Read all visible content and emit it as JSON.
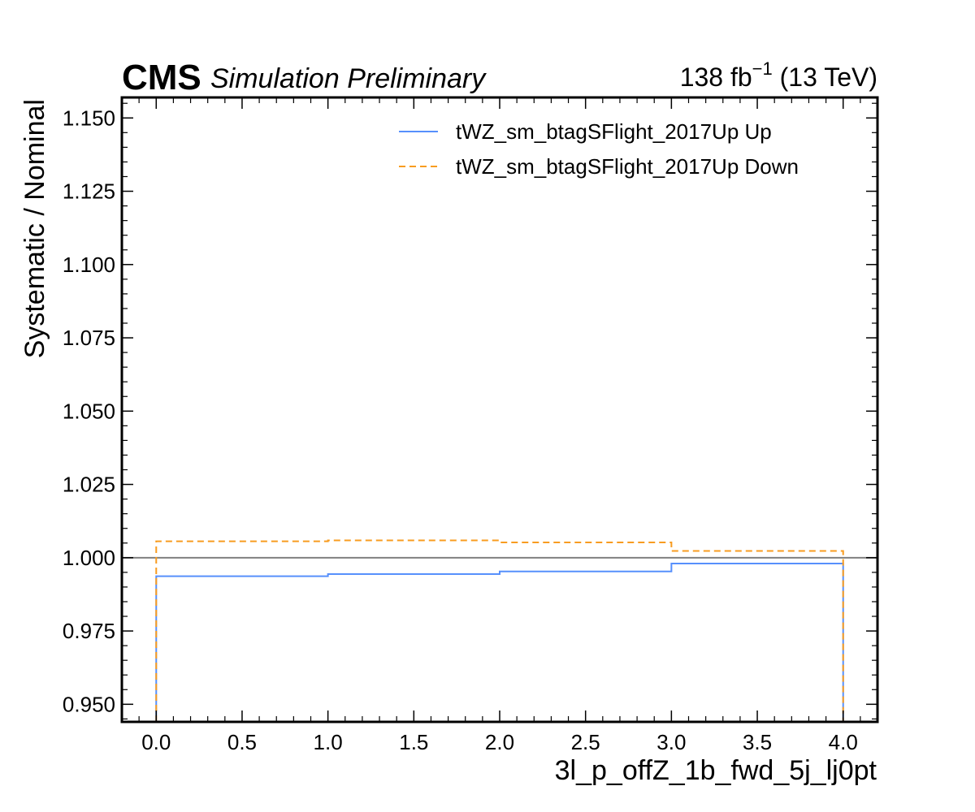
{
  "chart_data": {
    "type": "line",
    "drawstyle": "steps",
    "experiment_label": "CMS",
    "status_label": "Simulation Preliminary",
    "lumi_label": {
      "prefix": "138 fb",
      "exponent": "−1",
      "suffix": " (13 TeV)"
    },
    "xlabel": "3l_p_offZ_1b_fwd_5j_lj0pt",
    "ylabel": "Systematic / Nominal",
    "xlim": [
      -0.2,
      4.2
    ],
    "ylim": [
      0.944,
      1.157
    ],
    "x_ticks": [
      0.0,
      0.5,
      1.0,
      1.5,
      2.0,
      2.5,
      3.0,
      3.5,
      4.0
    ],
    "x_tick_labels": [
      "0.0",
      "0.5",
      "1.0",
      "1.5",
      "2.0",
      "2.5",
      "3.0",
      "3.5",
      "4.0"
    ],
    "y_ticks": [
      0.95,
      0.975,
      1.0,
      1.025,
      1.05,
      1.075,
      1.1,
      1.125,
      1.15
    ],
    "y_tick_labels": [
      "0.950",
      "0.975",
      "1.000",
      "1.025",
      "1.050",
      "1.075",
      "1.100",
      "1.125",
      "1.150"
    ],
    "reference_line": 1.0,
    "bin_edges": [
      0,
      1,
      2,
      3,
      4
    ],
    "legend_position": "top-right",
    "series": [
      {
        "name": "tWZ_sm_btagSFlight_2017Up Up",
        "values": [
          0.9937,
          0.9944,
          0.9953,
          0.998
        ],
        "color": "#5790fc",
        "dash": "solid"
      },
      {
        "name": "tWZ_sm_btagSFlight_2017Up Down",
        "values": [
          1.0056,
          1.0059,
          1.0052,
          1.0023
        ],
        "color": "#f89c20",
        "dash": "dashed"
      }
    ],
    "reference_color": "#808080"
  }
}
